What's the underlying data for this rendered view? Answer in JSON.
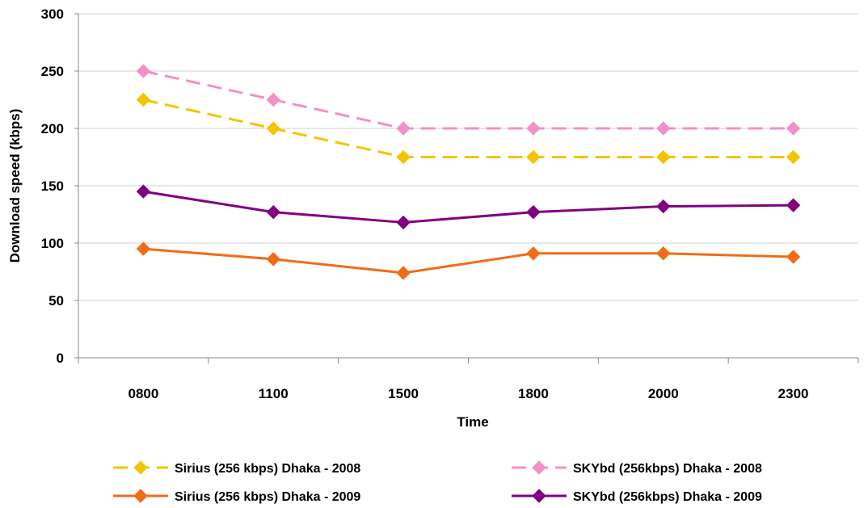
{
  "chart_data": {
    "type": "line",
    "title": "",
    "xlabel": "Time",
    "ylabel": "Download speed (kbps)",
    "categories": [
      "0800",
      "1100",
      "1500",
      "1800",
      "2000",
      "2300"
    ],
    "ylim": [
      0,
      300
    ],
    "yticks": [
      0,
      50,
      100,
      150,
      200,
      250,
      300
    ],
    "grid": "horizontal",
    "legend_position": "bottom",
    "series": [
      {
        "name": "Sirius (256 kbps) Dhaka - 2008",
        "values": [
          225,
          200,
          175,
          175,
          175,
          175
        ],
        "color": "#F2C500",
        "dash": "dashed",
        "marker": "diamond"
      },
      {
        "name": "SKYbd (256kbps) Dhaka - 2008",
        "values": [
          250,
          225,
          200,
          200,
          200,
          200
        ],
        "color": "#F48FC8",
        "dash": "dashed",
        "marker": "diamond"
      },
      {
        "name": "Sirius (256 kbps) Dhaka - 2009",
        "values": [
          95,
          86,
          74,
          91,
          91,
          88
        ],
        "color": "#F26B16",
        "dash": "solid",
        "marker": "diamond"
      },
      {
        "name": "SKYbd (256kbps) Dhaka - 2009",
        "values": [
          145,
          127,
          118,
          127,
          132,
          133
        ],
        "color": "#800080",
        "dash": "solid",
        "marker": "diamond"
      }
    ]
  }
}
